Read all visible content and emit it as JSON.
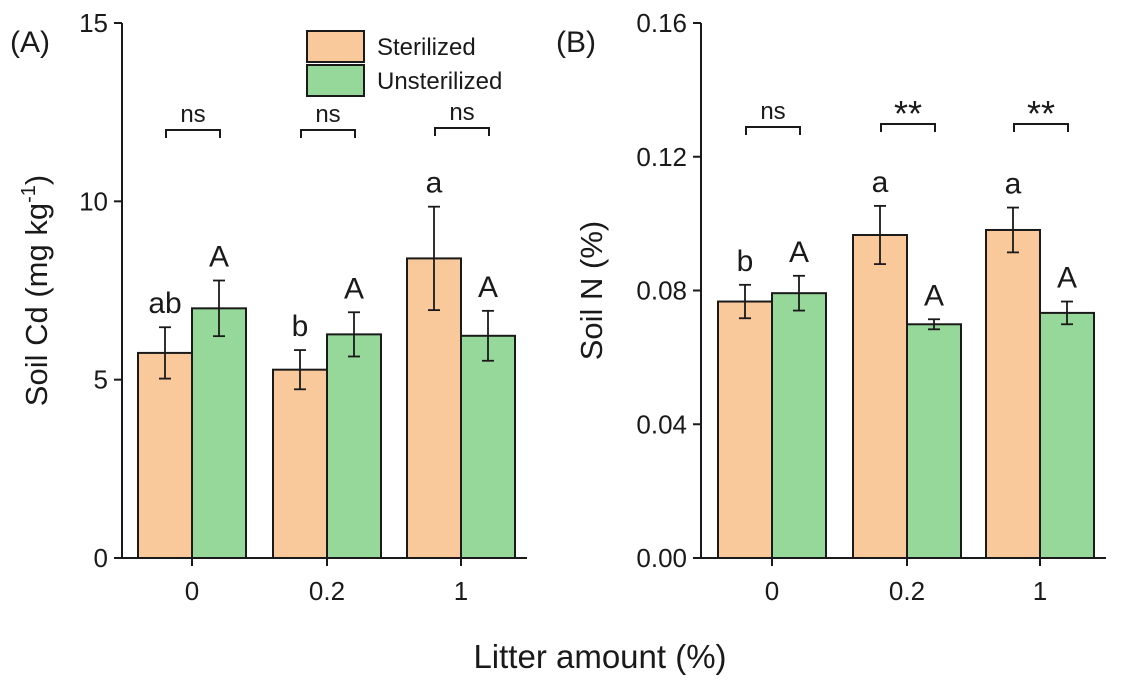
{
  "colors": {
    "sterilized": "#f9c89b",
    "unsterilized": "#96d89a",
    "axis": "#1a1a1a"
  },
  "xlabel": "Litter amount (%)",
  "legend": {
    "position": "top-right of panel A",
    "entries": [
      "Sterilized",
      "Unsterilized"
    ]
  },
  "chart_data": [
    {
      "type": "bar",
      "panel_label": "(A)",
      "categories": [
        "0",
        "0.2",
        "1"
      ],
      "ylabel": "Soil Cd (mg kg",
      "ylabel_sup": "-1",
      "ylabel_close": ")",
      "ylim": [
        0,
        15
      ],
      "yticks": [
        0,
        5,
        10,
        15
      ],
      "ytick_labels": [
        "0",
        "5",
        "10",
        "15"
      ],
      "series": [
        {
          "name": "Sterilized",
          "values": [
            5.75,
            5.28,
            8.4
          ],
          "errors": [
            0.72,
            0.55,
            1.45
          ],
          "letters": [
            "ab",
            "b",
            "a"
          ]
        },
        {
          "name": "Unsterilized",
          "values": [
            7.0,
            6.27,
            6.23
          ],
          "errors": [
            0.78,
            0.62,
            0.7
          ],
          "letters": [
            "A",
            "A",
            "A"
          ]
        }
      ],
      "significance": [
        "ns",
        "ns",
        "ns"
      ]
    },
    {
      "type": "bar",
      "panel_label": "(B)",
      "categories": [
        "0",
        "0.2",
        "1"
      ],
      "ylabel": "Soil N (%)",
      "ylim": [
        0,
        0.16
      ],
      "yticks": [
        0,
        0.04,
        0.08,
        0.12,
        0.16
      ],
      "ytick_labels": [
        "0.00",
        "0.04",
        "0.08",
        "0.12",
        "0.16"
      ],
      "series": [
        {
          "name": "Sterilized",
          "values": [
            0.0767,
            0.0966,
            0.0981
          ],
          "errors": [
            0.005,
            0.0087,
            0.0067
          ],
          "letters": [
            "b",
            "a",
            "a"
          ]
        },
        {
          "name": "Unsterilized",
          "values": [
            0.0792,
            0.0699,
            0.0733
          ],
          "errors": [
            0.0052,
            0.0015,
            0.0034
          ],
          "letters": [
            "A",
            "A",
            "A"
          ]
        }
      ],
      "significance": [
        "ns",
        "**",
        "**"
      ]
    }
  ]
}
